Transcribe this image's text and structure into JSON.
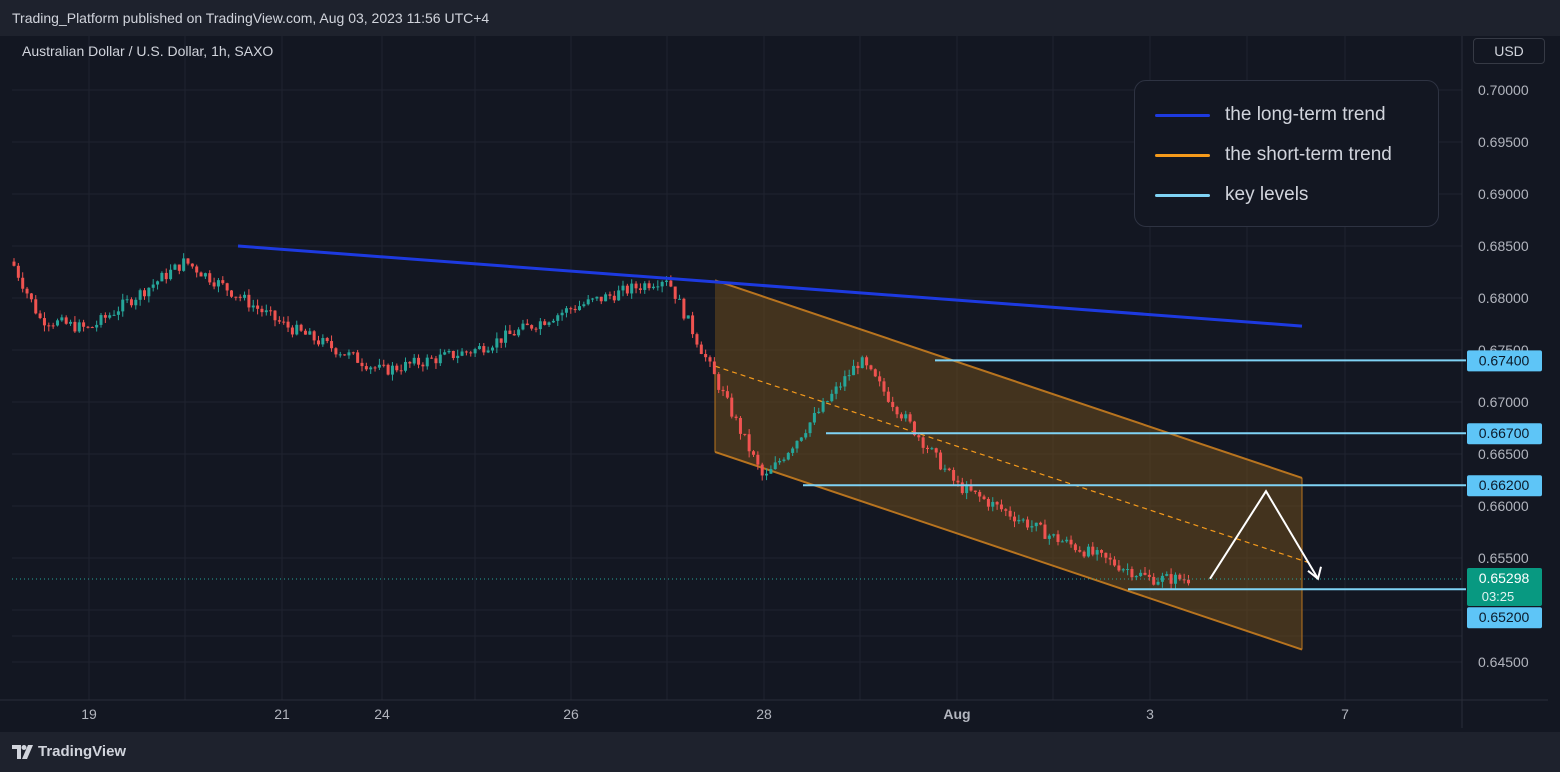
{
  "header": {
    "published": "Trading_Platform published on TradingView.com, Aug 03, 2023 11:56 UTC+4"
  },
  "symbol": "Australian Dollar / U.S. Dollar, 1h, SAXO",
  "currency_button": "USD",
  "brand": {
    "name": "TradingView",
    "icon": "tradingview-logo-icon"
  },
  "legend": [
    {
      "label": "the long-term trend",
      "color": "#1d3ae0"
    },
    {
      "label": "the short-term trend",
      "color": "#f59a1b"
    },
    {
      "label": "key levels",
      "color": "#7fd3f5"
    }
  ],
  "colors": {
    "up_candle": "#26a69a",
    "down_candle": "#ef5350",
    "channel_fill": "#6b4a1c",
    "channel_border": "#b8741f",
    "level_label_bg": "#5ec5f7",
    "price_label_bg": "#089981"
  },
  "chart_data": {
    "type": "candlestick",
    "x_ticks": [
      "19",
      "21",
      "24",
      "26",
      "28",
      "Aug",
      "3",
      "7"
    ],
    "y_ticks": [
      "0.70000",
      "0.69500",
      "0.69000",
      "0.68500",
      "0.68000",
      "0.67500",
      "0.67000",
      "0.66500",
      "0.66000",
      "0.65500",
      "0.64500"
    ],
    "ylim": [
      0.6425,
      0.7015
    ],
    "key_levels": [
      "0.67400",
      "0.66700",
      "0.66200",
      "0.65200"
    ],
    "last_price": "0.65298",
    "countdown": "03:25",
    "price_path": [
      {
        "date": "Jul 17",
        "close": 0.6835
      },
      {
        "date": "Jul 18",
        "close": 0.678
      },
      {
        "date": "Jul 19",
        "close": 0.677
      },
      {
        "date": "Jul 20",
        "close": 0.6835
      },
      {
        "date": "Jul 21",
        "close": 0.6775
      },
      {
        "date": "Jul 24",
        "close": 0.673
      },
      {
        "date": "Jul 25",
        "close": 0.675
      },
      {
        "date": "Jul 26",
        "close": 0.679
      },
      {
        "date": "Jul 27",
        "close": 0.682
      },
      {
        "date": "Jul 28",
        "close": 0.6625
      },
      {
        "date": "Jul 31",
        "close": 0.674
      },
      {
        "date": "Aug 01",
        "close": 0.662
      },
      {
        "date": "Aug 02",
        "close": 0.657
      },
      {
        "date": "Aug 03",
        "close": 0.653
      }
    ],
    "long_term_trend": {
      "from": {
        "date": "Jul 20",
        "value": 0.685
      },
      "to": {
        "date": "Aug 05",
        "value": 0.6773
      }
    },
    "short_term_channel": {
      "upper": {
        "from": {
          "date": "Jul 27",
          "value": 0.6817
        },
        "to": {
          "date": "Aug 05",
          "value": 0.6627
        }
      },
      "lower": {
        "from": {
          "date": "Jul 27",
          "value": 0.6652
        },
        "to": {
          "date": "Aug 05",
          "value": 0.6462
        }
      }
    },
    "projection": [
      "0.6530",
      "0.6620",
      "0.6530"
    ]
  }
}
